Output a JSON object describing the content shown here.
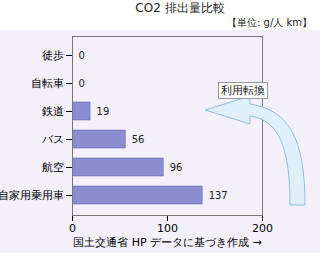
{
  "chart_data": {
    "type": "bar",
    "orientation": "horizontal",
    "title": "CO2 排出量比較",
    "subtitle": "【単位: g/人 km】",
    "xlabel": "国土交通省 HP データに基づき作成",
    "annotations": [
      "利用転換"
    ],
    "categories": [
      "徒歩",
      "自転車",
      "鉄道",
      "バス",
      "航空",
      "自家用乗用車"
    ],
    "values": [
      0,
      0,
      19,
      56,
      96,
      137
    ],
    "color": "#8c8cd0",
    "xlim": [
      0,
      200
    ],
    "xticks": [
      0,
      100,
      200
    ],
    "grid": false,
    "data_labels": true
  }
}
